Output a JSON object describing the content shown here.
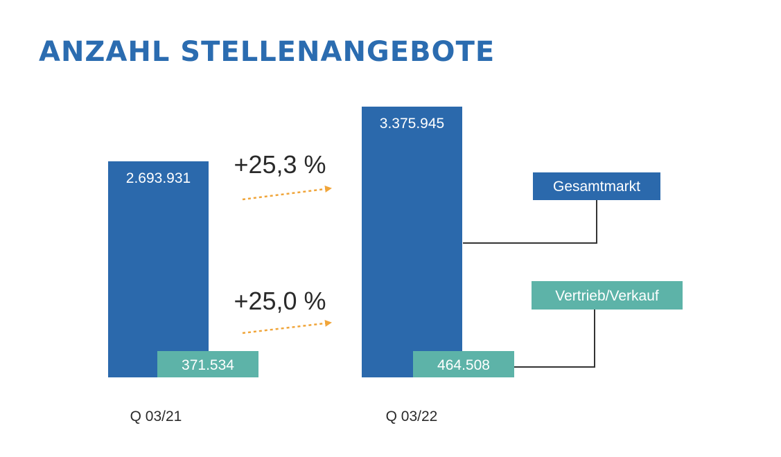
{
  "chart_data": {
    "type": "bar",
    "title": "ANZAHL STELLENANGEBOTE",
    "categories": [
      "Q 03/21",
      "Q 03/22"
    ],
    "series": [
      {
        "name": "Gesamtmarkt",
        "values": [
          2693931,
          3375945
        ],
        "labels": [
          "2.693.931",
          "3.375.945"
        ]
      },
      {
        "name": "Vertrieb/Verkauf",
        "values": [
          371534,
          464508
        ],
        "labels": [
          "371.534",
          "464.508"
        ]
      }
    ],
    "changes": [
      {
        "series": "Gesamtmarkt",
        "label": "+25,3 %"
      },
      {
        "series": "Vertrieb/Verkauf",
        "label": "+25,0 %"
      }
    ],
    "xlabel": "",
    "ylabel": "",
    "grid": false,
    "legend": "right"
  },
  "colors": {
    "title": "#2b6cb0",
    "total_bar": "#2b69ac",
    "sales_bar": "#5db3a8",
    "arrow": "#f0a53a",
    "connector": "#333333",
    "text_dark": "#2a2a2a",
    "bar_text": "#ffffff"
  }
}
